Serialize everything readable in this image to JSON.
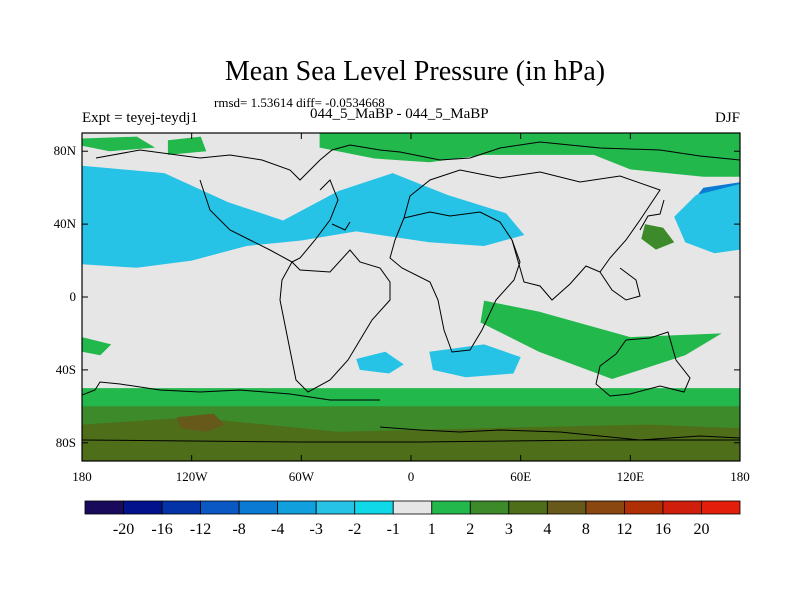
{
  "chart_data": {
    "type": "heatmap",
    "title": "Mean Sea Level Pressure (in hPa)",
    "stats": "rmsd= 1.53614 diff= -0.0534668",
    "left_label": "Expt = teyej-teydj1",
    "center_label": "044_5_MaBP - 044_5_MaBP",
    "right_label": "DJF",
    "xlabel": "",
    "ylabel": "",
    "xlim": [
      -180,
      180
    ],
    "ylim": [
      -90,
      90
    ],
    "x_ticks": [
      {
        "value": -180,
        "label": "180"
      },
      {
        "value": -120,
        "label": "120W"
      },
      {
        "value": -60,
        "label": "60W"
      },
      {
        "value": 0,
        "label": "0"
      },
      {
        "value": 60,
        "label": "60E"
      },
      {
        "value": 120,
        "label": "120E"
      },
      {
        "value": 180,
        "label": "180"
      }
    ],
    "y_ticks": [
      {
        "value": 80,
        "label": "80N"
      },
      {
        "value": 40,
        "label": "40N"
      },
      {
        "value": 0,
        "label": "0"
      },
      {
        "value": -40,
        "label": "40S"
      },
      {
        "value": -80,
        "label": "80S"
      }
    ],
    "colorbar": {
      "levels": [
        "-20",
        "-16",
        "-12",
        "-8",
        "-4",
        "-3",
        "-2",
        "-1",
        "1",
        "2",
        "3",
        "4",
        "8",
        "12",
        "16",
        "20"
      ],
      "colors": [
        "#1a0a5c",
        "#02128c",
        "#0433a8",
        "#0a58c4",
        "#0a7ad2",
        "#11a0dd",
        "#26c3e6",
        "#0fd9e8",
        "#e6e6e6",
        "#22b84c",
        "#3d8a2b",
        "#4e6e1a",
        "#66591a",
        "#8a4810",
        "#b03006",
        "#cf1f0c",
        "#e31e0b"
      ]
    },
    "regions": [
      {
        "level_index": 1,
        "lon": [
          -180,
          -160,
          -148,
          -150,
          -168,
          -180
        ],
        "lat": [
          50,
          58,
          52,
          42,
          38,
          40
        ]
      },
      {
        "level_index": 1,
        "lon": [
          180,
          170,
          164,
          170,
          180
        ],
        "lat": [
          52,
          56,
          48,
          40,
          40
        ]
      },
      {
        "level_index": 3,
        "lon": [
          -180,
          -150,
          -128,
          -112,
          -130,
          -180
        ],
        "lat": [
          63,
          64,
          52,
          34,
          30,
          36
        ]
      },
      {
        "level_index": 4,
        "lon": [
          180,
          160,
          152,
          162,
          180
        ],
        "lat": [
          63,
          60,
          50,
          36,
          34
        ]
      },
      {
        "level_index": 6,
        "lon": [
          -180,
          -135,
          -100,
          -70,
          -40,
          -10,
          20,
          52,
          62,
          40,
          10,
          -30,
          -60,
          -90,
          -120,
          -150,
          -180
        ],
        "lat": [
          72,
          68,
          52,
          42,
          58,
          68,
          56,
          46,
          34,
          28,
          30,
          36,
          31,
          28,
          20,
          16,
          18
        ]
      },
      {
        "level_index": 6,
        "lon": [
          180,
          156,
          144,
          150,
          166,
          180
        ],
        "lat": [
          62,
          56,
          44,
          30,
          24,
          26
        ]
      },
      {
        "level_index": 6,
        "lon": [
          -30,
          -14,
          -4,
          -12,
          -28
        ],
        "lat": [
          -34,
          -30,
          -37,
          -42,
          -40
        ]
      },
      {
        "level_index": 6,
        "lon": [
          10,
          40,
          60,
          56,
          30,
          12
        ],
        "lat": [
          -30,
          -26,
          -33,
          -42,
          -44,
          -40
        ]
      },
      {
        "level_index": 9,
        "lon": [
          -180,
          180,
          180,
          -180
        ],
        "lat": [
          -50,
          -50,
          -90,
          -90
        ]
      },
      {
        "level_index": 9,
        "lon": [
          -133,
          -115,
          -112,
          -133
        ],
        "lat": [
          86,
          88,
          80,
          78
        ]
      },
      {
        "level_index": 9,
        "lon": [
          -180,
          -150,
          -140,
          -165,
          -180
        ],
        "lat": [
          87,
          88,
          82,
          80,
          83
        ]
      },
      {
        "level_index": 9,
        "lon": [
          -50,
          -10,
          40,
          70,
          100,
          140,
          180,
          180,
          160,
          120,
          100,
          40,
          10,
          -20,
          -50
        ],
        "lat": [
          90,
          90,
          90,
          90,
          90,
          90,
          90,
          66,
          66,
          70,
          78,
          78,
          74,
          76,
          82
        ]
      },
      {
        "level_index": 9,
        "lon": [
          40,
          70,
          120,
          170,
          150,
          110,
          70,
          38
        ],
        "lat": [
          -2,
          -8,
          -22,
          -20,
          -32,
          -45,
          -30,
          -14
        ]
      },
      {
        "level_index": 9,
        "lon": [
          -180,
          -164,
          -170,
          -180
        ],
        "lat": [
          -22,
          -26,
          -32,
          -30
        ]
      },
      {
        "level_index": 10,
        "lon": [
          -180,
          180,
          180,
          -180
        ],
        "lat": [
          -60,
          -60,
          -90,
          -90
        ]
      },
      {
        "level_index": 10,
        "lon": [
          128,
          138,
          144,
          134,
          126
        ],
        "lat": [
          40,
          38,
          30,
          26,
          32
        ]
      },
      {
        "level_index": 11,
        "lon": [
          -180,
          -120,
          -40,
          40,
          130,
          180,
          180,
          -180
        ],
        "lat": [
          -70,
          -66,
          -74,
          -72,
          -70,
          -72,
          -90,
          -90
        ]
      },
      {
        "level_index": 12,
        "lon": [
          -128,
          -108,
          -102,
          -112,
          -126
        ],
        "lat": [
          -66,
          -64,
          -70,
          -74,
          -72
        ]
      }
    ]
  }
}
